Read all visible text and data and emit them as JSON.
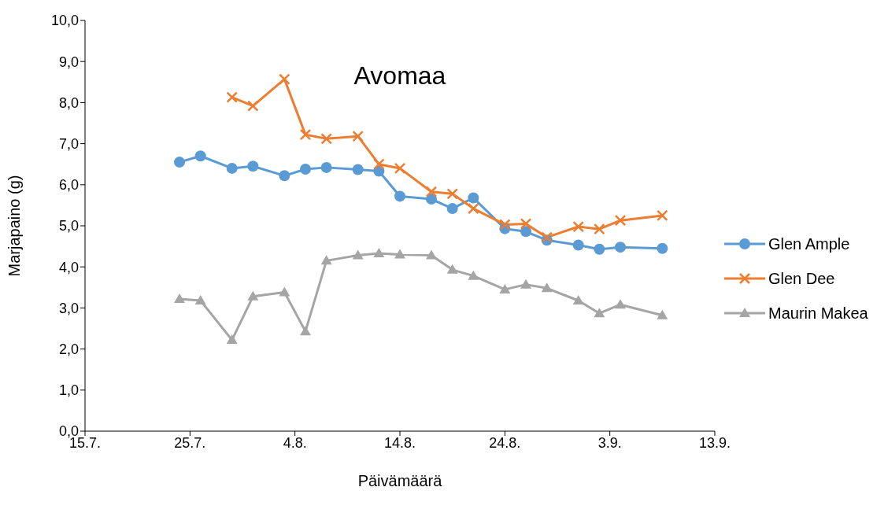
{
  "chart_data": {
    "type": "line",
    "title": "Avomaa",
    "xlabel": "Päivämäärä",
    "ylabel": "Marjapaino (g)",
    "x": [
      "--07-24",
      "--07-26",
      "--07-29",
      "--07-31",
      "--08-03",
      "--08-05",
      "--08-07",
      "--08-10",
      "--08-12",
      "--08-14",
      "--08-17",
      "--08-19",
      "--08-21",
      "--08-24",
      "--08-26",
      "--08-28",
      "--08-31",
      "--09-02",
      "--09-04",
      "--09-08"
    ],
    "series": [
      {
        "name": "Glen Ample",
        "color": "#5b9bd5",
        "marker": "circle",
        "values": [
          6.55,
          6.7,
          6.4,
          6.45,
          6.22,
          6.38,
          6.42,
          6.37,
          6.33,
          5.72,
          5.65,
          5.42,
          5.68,
          4.93,
          4.86,
          4.65,
          4.53,
          4.43,
          4.48,
          4.45
        ]
      },
      {
        "name": "Glen Dee",
        "color": "#ed7d31",
        "marker": "cross",
        "values": [
          null,
          null,
          8.13,
          7.92,
          8.57,
          7.22,
          7.12,
          7.18,
          6.5,
          6.4,
          5.83,
          5.78,
          5.42,
          5.03,
          5.05,
          4.72,
          4.98,
          4.92,
          5.13,
          5.25
        ]
      },
      {
        "name": "Maurin Makea",
        "color": "#a5a5a5",
        "marker": "triangle",
        "values": [
          3.22,
          3.18,
          2.22,
          3.28,
          3.38,
          2.43,
          4.15,
          4.28,
          4.33,
          4.3,
          4.28,
          3.93,
          3.78,
          3.45,
          3.57,
          3.48,
          3.18,
          2.87,
          3.08,
          2.82
        ]
      }
    ],
    "xlim": [
      "--07-15",
      "--09-13"
    ],
    "xticks": [
      {
        "value": "--07-15",
        "label": "15.7."
      },
      {
        "value": "--07-25",
        "label": "25.7."
      },
      {
        "value": "--08-04",
        "label": "4.8."
      },
      {
        "value": "--08-14",
        "label": "14.8."
      },
      {
        "value": "--08-24",
        "label": "24.8."
      },
      {
        "value": "--09-03",
        "label": "3.9."
      },
      {
        "value": "--09-13",
        "label": "13.9."
      }
    ],
    "ylim": [
      0,
      10
    ],
    "yticks": [
      {
        "value": 0,
        "label": "0,0"
      },
      {
        "value": 1,
        "label": "1,0"
      },
      {
        "value": 2,
        "label": "2,0"
      },
      {
        "value": 3,
        "label": "3,0"
      },
      {
        "value": 4,
        "label": "4,0"
      },
      {
        "value": 5,
        "label": "5,0"
      },
      {
        "value": 6,
        "label": "6,0"
      },
      {
        "value": 7,
        "label": "7,0"
      },
      {
        "value": 8,
        "label": "8,0"
      },
      {
        "value": 9,
        "label": "9,0"
      },
      {
        "value": 10,
        "label": "10,0"
      }
    ],
    "grid": false,
    "legend": "right",
    "line_style": "solid"
  }
}
